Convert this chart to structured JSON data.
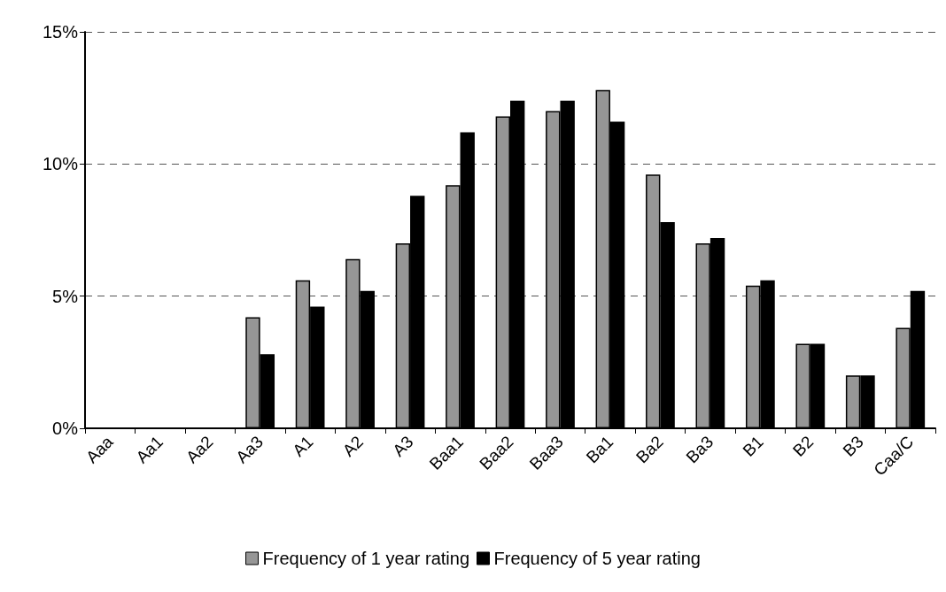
{
  "chart_data": {
    "type": "bar",
    "categories": [
      "Aaa",
      "Aa1",
      "Aa2",
      "Aa3",
      "A1",
      "A2",
      "A3",
      "Baa1",
      "Baa2",
      "Baa3",
      "Ba1",
      "Ba2",
      "Ba3",
      "B1",
      "B2",
      "B3",
      "Caa/C"
    ],
    "series": [
      {
        "name": "Frequency of 1 year rating",
        "color": "#969696",
        "values": [
          0,
          0,
          0,
          4.2,
          5.6,
          6.4,
          7.0,
          9.2,
          11.8,
          12.0,
          12.8,
          9.6,
          7.0,
          5.4,
          3.2,
          2.0,
          3.8
        ]
      },
      {
        "name": "Frequency of 5 year rating",
        "color": "#000000",
        "values": [
          0,
          0,
          0,
          2.8,
          4.6,
          5.2,
          8.8,
          11.2,
          12.4,
          12.4,
          11.6,
          7.8,
          7.2,
          5.6,
          3.2,
          2.0,
          5.2
        ]
      }
    ],
    "ylim": [
      0,
      15
    ],
    "yticks": [
      {
        "value": 0,
        "label": "0%"
      },
      {
        "value": 5,
        "label": "5%"
      },
      {
        "value": 10,
        "label": "10%"
      },
      {
        "value": 15,
        "label": "15%"
      }
    ],
    "grid": "y",
    "legend": "bottom"
  }
}
